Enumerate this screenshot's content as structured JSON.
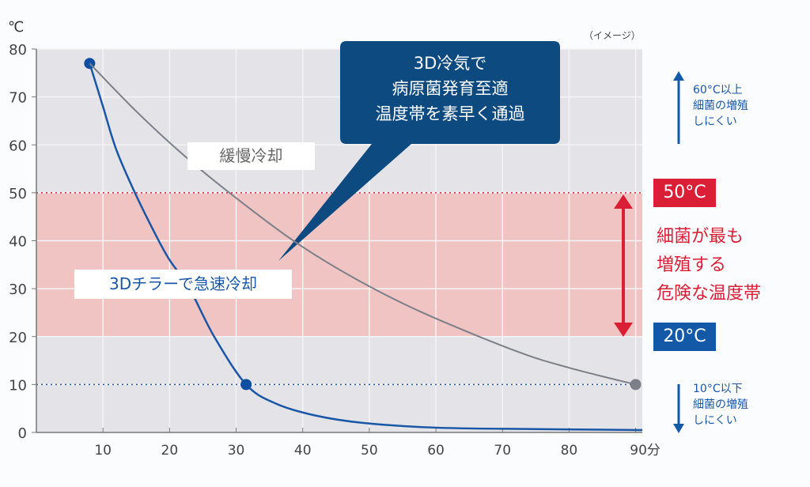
{
  "chart_data": {
    "type": "line",
    "ylabel": "℃",
    "xunit": "分",
    "note": "（イメージ）",
    "xlim": [
      0,
      91
    ],
    "ylim": [
      0,
      80
    ],
    "xticks": [
      "10",
      "20",
      "30",
      "40",
      "50",
      "60",
      "70",
      "80",
      "90分"
    ],
    "yticks": [
      "0",
      "10",
      "20",
      "30",
      "40",
      "50",
      "60",
      "70",
      "80"
    ],
    "grid": true,
    "series": [
      {
        "name": "3Dチラーで急速冷却",
        "color": "#1a56a6",
        "x": [
          8,
          10,
          12,
          14.8,
          18,
          20,
          23,
          26.7,
          31.5,
          36,
          42,
          49,
          60,
          75,
          91
        ],
        "y": [
          77,
          68,
          59,
          50,
          41,
          36,
          30,
          20,
          10,
          6,
          3.5,
          2,
          1,
          0.7,
          0.5
        ],
        "markers": [
          [
            8,
            77
          ],
          [
            31.5,
            10
          ]
        ]
      },
      {
        "name": "緩慢冷却",
        "color": "#7d7f88",
        "x": [
          8,
          15,
          22,
          29,
          38.6,
          48,
          58,
          72,
          80,
          90
        ],
        "y": [
          77,
          67,
          58,
          50,
          40,
          32,
          25,
          17,
          13.5,
          10
        ],
        "markers": [
          [
            90,
            10
          ]
        ]
      }
    ],
    "bands": [
      {
        "from": 20,
        "to": 50,
        "color": "#efc4c2"
      }
    ],
    "reference_lines": [
      {
        "y": 50,
        "color": "#d91e36"
      },
      {
        "y": 10,
        "color": "#1a56a6"
      }
    ]
  },
  "callout": {
    "lines": [
      "3D冷気で",
      "病原菌発育至適",
      "温度帯を素早く通過"
    ],
    "color": "#0d4a80"
  },
  "labels": {
    "slow": "緩慢冷却",
    "fast": "3Dチラーで急速冷却"
  },
  "danger_zone": {
    "upper": "50°C",
    "lower": "20°C",
    "lines": [
      "細菌が最も",
      "増殖する",
      "危険な温度帯"
    ]
  },
  "upper_note": [
    "60°C以上",
    "細菌の増殖",
    "しにくい"
  ],
  "lower_note": [
    "10°C以下",
    "細菌の増殖",
    "しにくい"
  ]
}
